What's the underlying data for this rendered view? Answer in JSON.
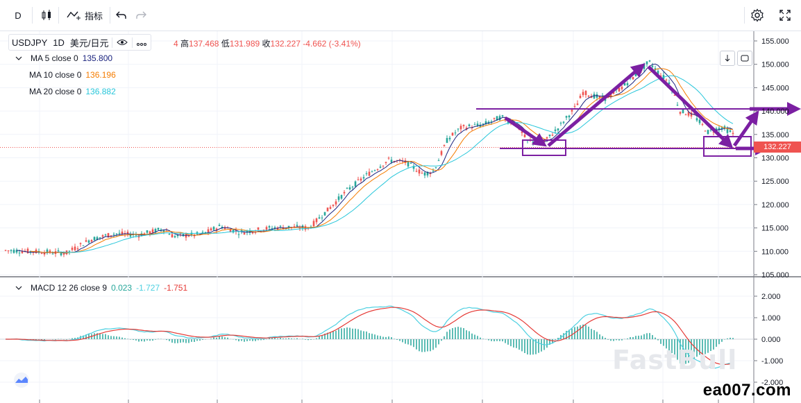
{
  "toolbar": {
    "interval": "D",
    "indicators_label": "指标"
  },
  "symbol": {
    "name": "USDJPY",
    "timeframe": "1D",
    "currency": "美元/日元",
    "open_fragment": "4",
    "high_label": "高",
    "high": "137.468",
    "low_label": "低",
    "low": "131.989",
    "close_label": "收",
    "close": "132.227",
    "change": "-4.662",
    "change_pct": "(-3.41%)"
  },
  "ma": [
    {
      "label": "MA 5 close 0",
      "value": "135.800",
      "color": "#1a237e"
    },
    {
      "label": "MA 10 close 0",
      "value": "136.196",
      "color": "#f57c00"
    },
    {
      "label": "MA 20 close 0",
      "value": "136.882",
      "color": "#26c6da"
    }
  ],
  "macd": {
    "label": "MACD 12 26 close 9",
    "v1": "0.023",
    "v2": "-1.727",
    "v3": "-1.751",
    "c1": "#26a69a",
    "c2": "#4dd0e1",
    "c3": "#e53935"
  },
  "price_axis": [
    "155.000",
    "150.000",
    "145.000",
    "140.000",
    "135.000",
    "130.000",
    "125.000",
    "120.000",
    "115.000",
    "110.000",
    "105.000"
  ],
  "current_price": "132.227",
  "macd_axis": [
    "2.000",
    "1.000",
    "0.000",
    "-1.000",
    "-2.000"
  ],
  "watermark": "ea007.com",
  "brand_watermark": "FastBull",
  "colors": {
    "up": "#26a69a",
    "down": "#ef5350",
    "annotation": "#7b1fa2"
  }
}
